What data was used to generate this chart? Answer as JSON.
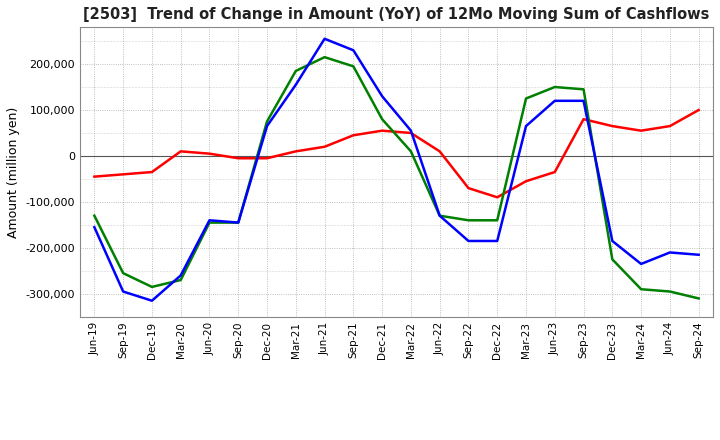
{
  "title": "[2503]  Trend of Change in Amount (YoY) of 12Mo Moving Sum of Cashflows",
  "ylabel": "Amount (million yen)",
  "ylim": [
    -350000,
    280000
  ],
  "yticks": [
    -300000,
    -200000,
    -100000,
    0,
    100000,
    200000
  ],
  "background_color": "#ffffff",
  "grid_color": "#aaaaaa",
  "x_labels": [
    "Jun-19",
    "Sep-19",
    "Dec-19",
    "Mar-20",
    "Jun-20",
    "Sep-20",
    "Dec-20",
    "Mar-21",
    "Jun-21",
    "Sep-21",
    "Dec-21",
    "Mar-22",
    "Jun-22",
    "Sep-22",
    "Dec-22",
    "Mar-23",
    "Jun-23",
    "Sep-23",
    "Dec-23",
    "Mar-24",
    "Jun-24",
    "Sep-24"
  ],
  "operating_cashflow": [
    -45000,
    -40000,
    -35000,
    10000,
    5000,
    -5000,
    -5000,
    10000,
    20000,
    45000,
    55000,
    50000,
    10000,
    -70000,
    -90000,
    -55000,
    -35000,
    80000,
    65000,
    55000,
    65000,
    100000
  ],
  "investing_cashflow": [
    -130000,
    -255000,
    -285000,
    -270000,
    -145000,
    -145000,
    75000,
    185000,
    215000,
    195000,
    80000,
    10000,
    -130000,
    -140000,
    -140000,
    125000,
    150000,
    145000,
    -225000,
    -290000,
    -295000,
    -310000
  ],
  "free_cashflow": [
    -155000,
    -295000,
    -315000,
    -260000,
    -140000,
    -145000,
    65000,
    155000,
    255000,
    230000,
    130000,
    55000,
    -130000,
    -185000,
    -185000,
    65000,
    120000,
    120000,
    -185000,
    -235000,
    -210000,
    -215000
  ],
  "line_colors": {
    "operating": "#ff0000",
    "investing": "#008000",
    "free": "#0000ff"
  },
  "line_width": 1.8
}
